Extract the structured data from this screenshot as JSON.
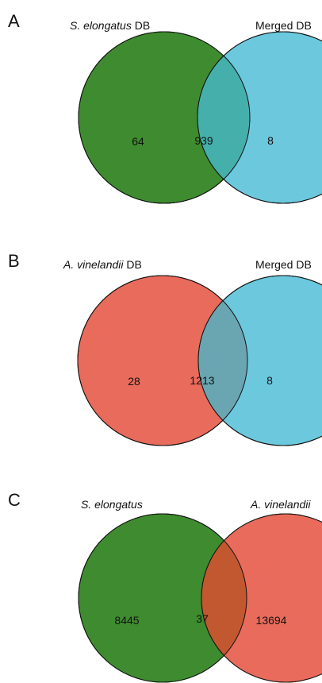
{
  "panels": [
    {
      "letter": "A",
      "left_set": {
        "name": "S. elongatus",
        "suffix": " DB",
        "color": "#3e8c2f"
      },
      "right_set": {
        "name": "",
        "suffix": "Merged DB",
        "color": "#6cc8dd"
      },
      "counts": {
        "left_only": "64",
        "both": "939",
        "right_only": "8"
      },
      "overlap_color": "#45afab"
    },
    {
      "letter": "B",
      "left_set": {
        "name": "A. vinelandii",
        "suffix": " DB",
        "color": "#e96b5b"
      },
      "right_set": {
        "name": "",
        "suffix": "Merged DB",
        "color": "#6cc8dd"
      },
      "counts": {
        "left_only": "28",
        "both": "1213",
        "right_only": "8"
      },
      "overlap_color": "#6aa6b2"
    },
    {
      "letter": "C",
      "left_set": {
        "name": "S. elongatus",
        "suffix": "",
        "color": "#3e8c2f"
      },
      "right_set": {
        "name": "A. vinelandii",
        "suffix": "",
        "color": "#e96b5b"
      },
      "counts": {
        "left_only": "8445",
        "both": "37",
        "right_only": "13694"
      },
      "overlap_color": "#c2582f"
    }
  ]
}
